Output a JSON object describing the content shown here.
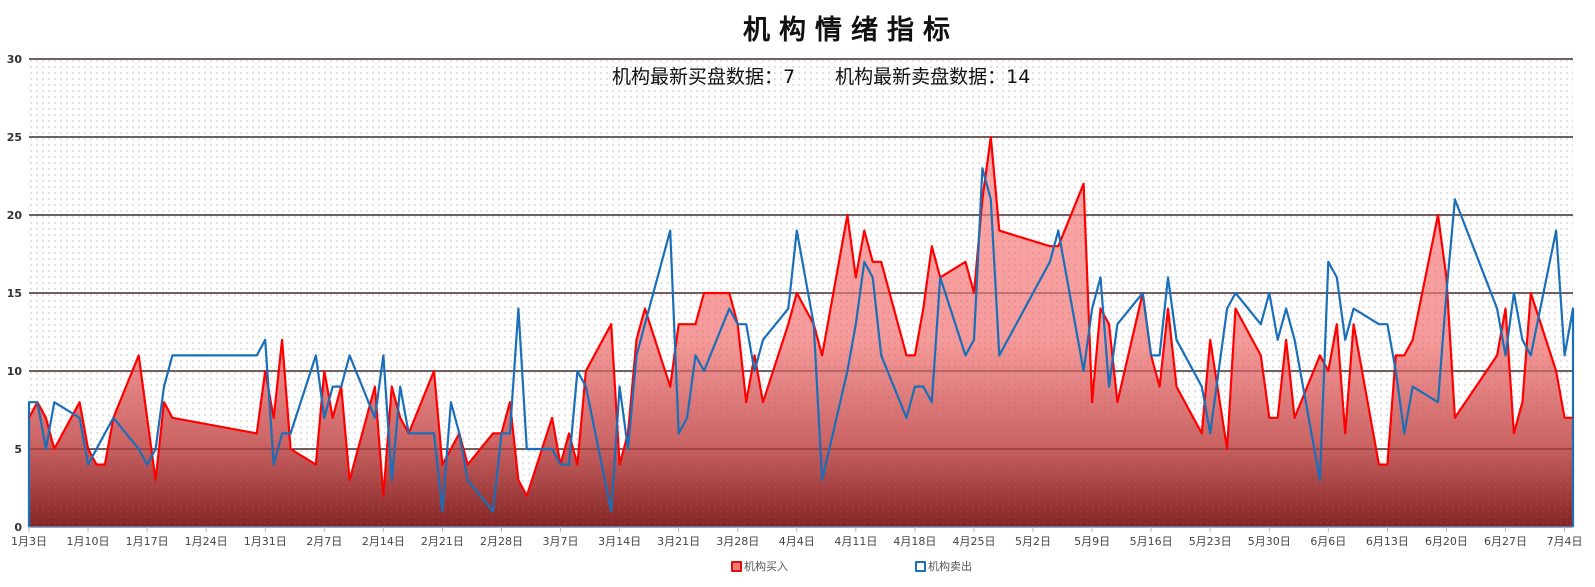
{
  "chart_data": {
    "type": "area",
    "title": "机构情绪指标",
    "subtitle": {
      "buy_label": "机构最新买盘数据：",
      "buy_value": "7",
      "sell_label": "机构最新卖盘数据：",
      "sell_value": "14"
    },
    "ylim": [
      0,
      30
    ],
    "yticks": [
      "0",
      "5",
      "10",
      "15",
      "20",
      "25",
      "30"
    ],
    "xticks": [
      "1月3日",
      "1月10日",
      "1月17日",
      "1月24日",
      "1月31日",
      "2月7日",
      "2月14日",
      "2月21日",
      "2月28日",
      "3月7日",
      "3月14日",
      "3月21日",
      "3月28日",
      "4月4日",
      "4月11日",
      "4月18日",
      "4月25日",
      "5月2日",
      "5月9日",
      "5月16日",
      "5月23日",
      "5月30日",
      "6月6日",
      "6月13日",
      "6月20日",
      "6月27日",
      "7月4日"
    ],
    "grid": true,
    "legend_position": "bottom",
    "x": [
      "1月3日",
      "1月4日",
      "1月5日",
      "1月6日",
      "1月9日",
      "1月10日",
      "1月11日",
      "1月12日",
      "1月13日",
      "1月16日",
      "1月17日",
      "1月18日",
      "1月19日",
      "1月20日",
      "1月30日",
      "1月31日",
      "2月1日",
      "2月2日",
      "2月3日",
      "2月6日",
      "2月7日",
      "2月8日",
      "2月9日",
      "2月10日",
      "2月13日",
      "2月14日",
      "2月15日",
      "2月16日",
      "2月17日",
      "2月20日",
      "2月21日",
      "2月22日",
      "2月23日",
      "2月24日",
      "2月27日",
      "2月28日",
      "3月1日",
      "3月2日",
      "3月3日",
      "3月6日",
      "3月7日",
      "3月8日",
      "3月9日",
      "3月10日",
      "3月13日",
      "3月14日",
      "3月15日",
      "3月16日",
      "3月17日",
      "3月20日",
      "3月21日",
      "3月22日",
      "3月23日",
      "3月24日",
      "3月27日",
      "3月28日",
      "3月29日",
      "3月30日",
      "3月31日",
      "4月3日",
      "4月4日",
      "4月6日",
      "4月7日",
      "4月10日",
      "4月11日",
      "4月12日",
      "4月13日",
      "4月14日",
      "4月17日",
      "4月18日",
      "4月19日",
      "4月20日",
      "4月21日",
      "4月24日",
      "4月25日",
      "4月26日",
      "4月27日",
      "4月28日",
      "5月4日",
      "5月5日",
      "5月8日",
      "5月9日",
      "5月10日",
      "5月11日",
      "5月12日",
      "5月15日",
      "5月16日",
      "5月17日",
      "5月18日",
      "5月19日",
      "5月22日",
      "5月23日",
      "5月25日",
      "5月26日",
      "5月29日",
      "5月30日",
      "5月31日",
      "6月1日",
      "6月2日",
      "6月5日",
      "6月6日",
      "6月7日",
      "6月8日",
      "6月9日",
      "6月12日",
      "6月13日",
      "6月14日",
      "6月15日",
      "6月16日",
      "6月19日",
      "6月20日",
      "6月21日",
      "6月26日",
      "6月27日",
      "6月28日",
      "6月29日",
      "6月30日",
      "7月3日",
      "7月4日",
      "7月5日"
    ],
    "series": [
      {
        "name": "机构买入",
        "color": "#ff0000",
        "fill": "gradient-red",
        "values": [
          7,
          8,
          7,
          5,
          8,
          5,
          4,
          4,
          7,
          11,
          7,
          3,
          8,
          7,
          6,
          10,
          7,
          12,
          5,
          4,
          10,
          7,
          9,
          3,
          9,
          2,
          9,
          7,
          6,
          10,
          4,
          5,
          6,
          4,
          6,
          6,
          8,
          3,
          2,
          7,
          4,
          6,
          4,
          10,
          13,
          4,
          6,
          12,
          14,
          9,
          13,
          13,
          13,
          15,
          15,
          13,
          8,
          11,
          8,
          13,
          15,
          13,
          11,
          20,
          16,
          19,
          17,
          17,
          11,
          11,
          14,
          18,
          16,
          17,
          15,
          21,
          25,
          19,
          18,
          18,
          22,
          8,
          14,
          13,
          8,
          15,
          11,
          9,
          14,
          9,
          6,
          12,
          5,
          14,
          11,
          7,
          7,
          12,
          7,
          11,
          10,
          13,
          6,
          13,
          4,
          4,
          11,
          11,
          12,
          20,
          16,
          7,
          11,
          14,
          6,
          8,
          15,
          10,
          7,
          7
        ]
      },
      {
        "name": "机构卖出",
        "color": "#1a6fb8",
        "values": [
          8,
          8,
          5,
          8,
          7,
          4,
          5,
          6,
          7,
          5,
          4,
          5,
          9,
          11,
          11,
          12,
          4,
          6,
          6,
          11,
          7,
          9,
          9,
          11,
          7,
          11,
          3,
          9,
          6,
          6,
          1,
          8,
          6,
          3,
          1,
          6,
          6,
          14,
          5,
          5,
          4,
          4,
          10,
          9,
          1,
          9,
          5,
          11,
          13,
          19,
          6,
          7,
          11,
          10,
          14,
          13,
          13,
          10,
          12,
          14,
          19,
          13,
          3,
          10,
          13,
          17,
          16,
          11,
          7,
          9,
          9,
          8,
          16,
          11,
          12,
          23,
          21,
          11,
          17,
          19,
          10,
          14,
          16,
          9,
          13,
          15,
          11,
          11,
          16,
          12,
          9,
          6,
          14,
          15,
          13,
          15,
          12,
          14,
          12,
          3,
          17,
          16,
          12,
          14,
          13,
          13,
          10,
          6,
          9,
          8,
          15,
          21,
          14,
          11,
          15,
          12,
          11,
          19,
          11,
          14
        ]
      }
    ]
  }
}
